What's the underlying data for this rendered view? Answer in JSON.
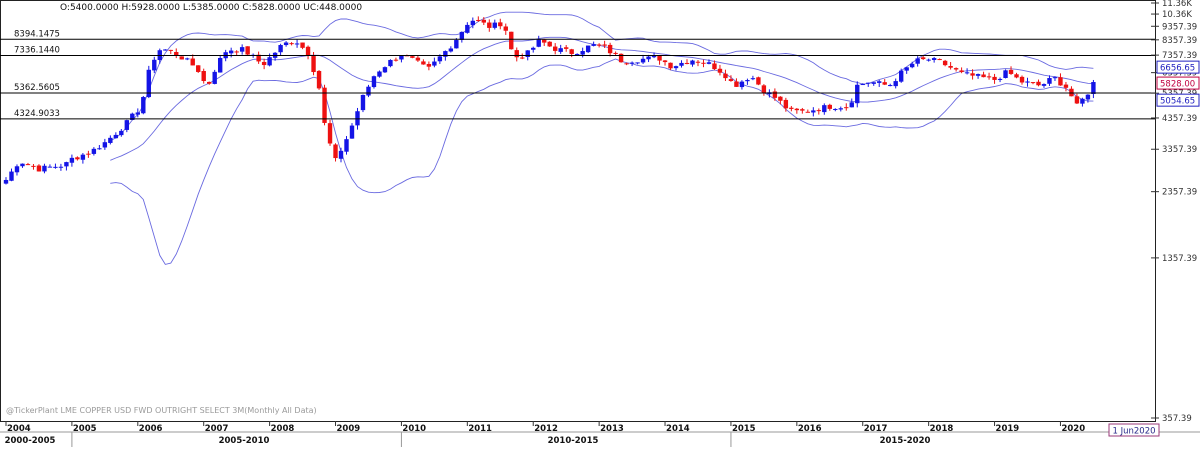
{
  "header": {
    "ohlc_readout": "O:5400.0000  H:5928.0000  L:5385.0000  C:5828.0000  UC:448.0000"
  },
  "footer": {
    "watermark": "@TickerPlant LME COPPER USD FWD OUTRIGHT SELECT 3M(Monthly All Data)",
    "cursor_date": "1 Jun2020",
    "periods": [
      "2000-2005",
      "2005-2010",
      "2010-2015",
      "2015-2020"
    ]
  },
  "chart_data": {
    "type": "candlestick",
    "y_axis": {
      "scale": "log",
      "ylim": [
        357.39,
        11360
      ],
      "tick_labels": [
        "11.36K",
        "10.36K",
        "9357.39",
        "8357.39",
        "7357.39",
        "6357.39",
        "5357.39",
        "4357.39",
        "3357.39",
        "2357.39",
        "1357.39",
        "357.39"
      ],
      "tick_values": [
        11360,
        10360,
        9357.39,
        8357.39,
        7357.39,
        6357.39,
        5357.39,
        4357.39,
        3357.39,
        2357.39,
        1357.39,
        357.39
      ]
    },
    "x_axis": {
      "tick_labels": [
        "2004",
        "2005",
        "2006",
        "2007",
        "2008",
        "2009",
        "2010",
        "2011",
        "2012",
        "2013",
        "2014",
        "2015",
        "2016",
        "2017",
        "2018",
        "2019",
        "2020"
      ],
      "range_years": [
        2004.0,
        2020.6
      ]
    },
    "horizontal_levels": [
      {
        "label": "8394.1475",
        "value": 8394.1475
      },
      {
        "label": "7336.1440",
        "value": 7336.144
      },
      {
        "label": "5362.5605",
        "value": 5362.5605
      },
      {
        "label": "4324.9033",
        "value": 4324.9033
      }
    ],
    "price_tags": [
      {
        "label": "6656.65",
        "value": 6656.65,
        "color": "#2020c0"
      },
      {
        "label": "5828.00",
        "value": 5828.0,
        "color": "#c00040"
      },
      {
        "label": "5054.65",
        "value": 5054.65,
        "color": "#2020c0"
      }
    ],
    "colors": {
      "up": "#1414e6",
      "down": "#ee1111",
      "bands": "#6a6ae0",
      "level": "#000000"
    },
    "anchors": [
      [
        2004.0,
        2600
      ],
      [
        2004.2,
        3050
      ],
      [
        2004.5,
        2850
      ],
      [
        2004.9,
        2950
      ],
      [
        2005.0,
        3100
      ],
      [
        2005.3,
        3300
      ],
      [
        2005.5,
        3550
      ],
      [
        2005.8,
        4100
      ],
      [
        2006.05,
        4800
      ],
      [
        2006.2,
        6900
      ],
      [
        2006.35,
        7800
      ],
      [
        2006.6,
        7400
      ],
      [
        2006.9,
        6600
      ],
      [
        2007.05,
        5600
      ],
      [
        2007.2,
        6800
      ],
      [
        2007.35,
        7700
      ],
      [
        2007.6,
        7700
      ],
      [
        2007.9,
        6800
      ],
      [
        2008.2,
        8050
      ],
      [
        2008.4,
        8300
      ],
      [
        2008.6,
        7400
      ],
      [
        2008.75,
        5600
      ],
      [
        2008.85,
        3900
      ],
      [
        2009.0,
        3050
      ],
      [
        2009.2,
        3800
      ],
      [
        2009.4,
        5100
      ],
      [
        2009.6,
        6300
      ],
      [
        2009.8,
        6900
      ],
      [
        2010.0,
        7400
      ],
      [
        2010.2,
        7000
      ],
      [
        2010.4,
        6500
      ],
      [
        2010.6,
        7300
      ],
      [
        2010.8,
        8200
      ],
      [
        2011.0,
        9600
      ],
      [
        2011.1,
        9900
      ],
      [
        2011.35,
        9300
      ],
      [
        2011.55,
        9700
      ],
      [
        2011.7,
        7200
      ],
      [
        2011.9,
        7400
      ],
      [
        2012.1,
        8300
      ],
      [
        2012.3,
        7800
      ],
      [
        2012.6,
        7500
      ],
      [
        2012.9,
        8000
      ],
      [
        2013.1,
        7800
      ],
      [
        2013.35,
        7000
      ],
      [
        2013.6,
        7100
      ],
      [
        2013.9,
        7200
      ],
      [
        2014.1,
        6700
      ],
      [
        2014.4,
        7100
      ],
      [
        2014.7,
        6800
      ],
      [
        2014.9,
        6300
      ],
      [
        2015.05,
        5700
      ],
      [
        2015.3,
        6200
      ],
      [
        2015.5,
        5500
      ],
      [
        2015.7,
        5100
      ],
      [
        2015.9,
        4600
      ],
      [
        2016.1,
        4600
      ],
      [
        2016.5,
        4800
      ],
      [
        2016.8,
        4800
      ],
      [
        2016.9,
        5700
      ],
      [
        2017.1,
        5900
      ],
      [
        2017.4,
        5700
      ],
      [
        2017.6,
        6400
      ],
      [
        2017.8,
        7000
      ],
      [
        2018.0,
        7100
      ],
      [
        2018.2,
        6900
      ],
      [
        2018.5,
        6300
      ],
      [
        2018.8,
        6100
      ],
      [
        2019.0,
        6000
      ],
      [
        2019.2,
        6400
      ],
      [
        2019.4,
        5900
      ],
      [
        2019.7,
        5700
      ],
      [
        2019.9,
        6100
      ],
      [
        2020.1,
        5600
      ],
      [
        2020.25,
        4800
      ],
      [
        2020.4,
        5300
      ],
      [
        2020.5,
        5828
      ]
    ]
  }
}
